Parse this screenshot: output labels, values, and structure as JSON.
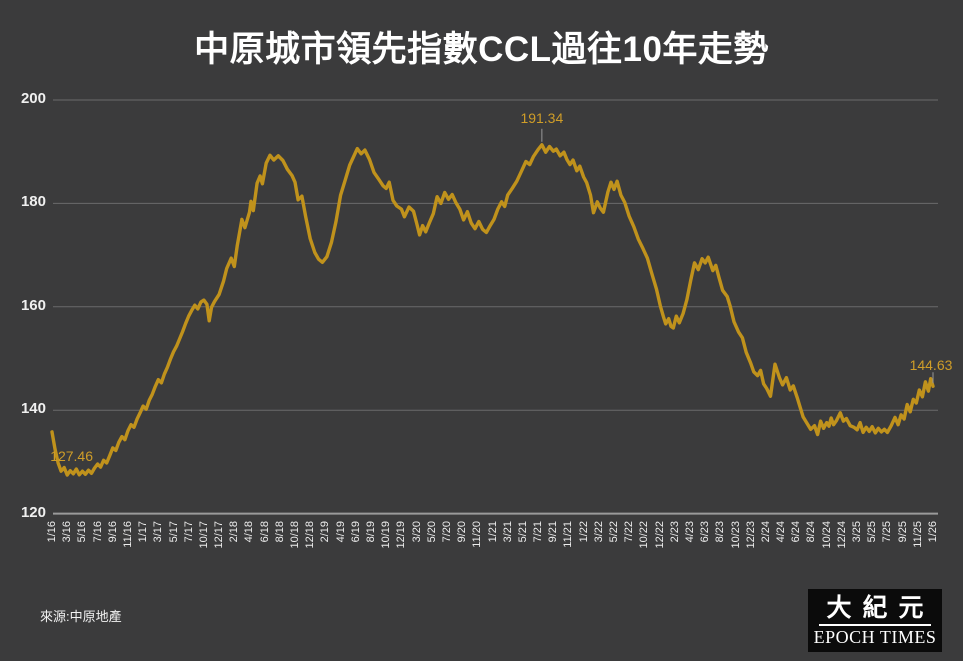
{
  "title": "中原城市領先指數CCL過往10年走勢",
  "source": "來源:中原地產",
  "logo": {
    "cjk": "大紀元",
    "latin": "EPOCH TIMES"
  },
  "colors": {
    "background": "#3b3b3c",
    "line_gold": "#c0921c",
    "annotation_gold": "#cf9d28",
    "gridline": "#6b6b6b",
    "axis_line": "#9a9a9a",
    "leader_gray": "#999999",
    "text_white": "#ffffff",
    "logo_background": "#0b0b0b"
  },
  "chart_data": {
    "type": "line",
    "title": "中原城市領先指數CCL過往10年走勢",
    "xlabel": "",
    "ylabel": "",
    "ylim": [
      120,
      200
    ],
    "grid": "horizontal",
    "legend": "none",
    "y_ticks": [
      200,
      180,
      160,
      140,
      120
    ],
    "x_tick_labels": [
      "1/16",
      "3/16",
      "5/16",
      "7/16",
      "9/16",
      "11/16",
      "1/17",
      "3/17",
      "5/17",
      "7/17",
      "10/17",
      "12/17",
      "2/18",
      "4/18",
      "6/18",
      "8/18",
      "10/18",
      "12/18",
      "2/19",
      "4/19",
      "6/19",
      "8/19",
      "10/19",
      "12/19",
      "3/20",
      "5/20",
      "7/20",
      "9/20",
      "11/20",
      "1/21",
      "3/21",
      "5/21",
      "7/21",
      "9/21",
      "11/21",
      "1/22",
      "3/22",
      "5/22",
      "7/22",
      "10/22",
      "12/22",
      "2/23",
      "4/23",
      "6/23",
      "8/23",
      "10/23",
      "12/23",
      "2/24",
      "4/24",
      "6/24",
      "8/24",
      "10/24",
      "12/24",
      "3/25",
      "5/25",
      "7/25",
      "9/25",
      "11/25",
      "1/26"
    ],
    "annotations": [
      {
        "text": "127.46",
        "t": 1.0,
        "v": 127.46,
        "pos": "start"
      },
      {
        "text": "191.34",
        "t": 32.25,
        "v": 191.34,
        "pos": "peak"
      },
      {
        "text": "144.63",
        "t": 58.0,
        "v": 144.63,
        "pos": "end"
      }
    ],
    "series": [
      {
        "name": "CCL",
        "points": {
          "t": [
            0,
            0.2,
            0.4,
            0.6,
            0.8,
            1.0,
            1.2,
            1.4,
            1.6,
            1.8,
            2.0,
            2.2,
            2.4,
            2.6,
            2.8,
            3.0,
            3.2,
            3.4,
            3.6,
            3.8,
            4.0,
            4.2,
            4.4,
            4.6,
            4.8,
            5.0,
            5.2,
            5.4,
            5.6,
            5.8,
            6.0,
            6.2,
            6.4,
            6.6,
            6.8,
            7.0,
            7.2,
            7.4,
            7.6,
            7.8,
            8.0,
            8.2,
            8.4,
            8.6,
            8.8,
            9.0,
            9.2,
            9.4,
            9.6,
            9.8,
            10.0,
            10.2,
            10.35,
            10.5,
            10.7,
            11.0,
            11.3,
            11.5,
            11.8,
            12.0,
            12.2,
            12.5,
            12.7,
            13.0,
            13.1,
            13.25,
            13.5,
            13.7,
            13.85,
            14.1,
            14.35,
            14.6,
            14.9,
            15.2,
            15.5,
            15.8,
            16.0,
            16.2,
            16.45,
            16.7,
            17.0,
            17.3,
            17.55,
            17.8,
            18.1,
            18.4,
            18.7,
            19.0,
            19.3,
            19.6,
            19.85,
            20.1,
            20.35,
            20.6,
            20.9,
            21.2,
            21.5,
            21.8,
            22.0,
            22.2,
            22.45,
            22.7,
            23.0,
            23.2,
            23.5,
            23.8,
            24.0,
            24.2,
            24.4,
            24.6,
            24.85,
            25.1,
            25.35,
            25.6,
            25.85,
            26.1,
            26.35,
            26.6,
            26.85,
            27.1,
            27.35,
            27.6,
            27.85,
            28.1,
            28.35,
            28.6,
            28.85,
            29.1,
            29.35,
            29.6,
            29.8,
            30.0,
            30.3,
            30.6,
            30.9,
            31.2,
            31.45,
            31.7,
            32.0,
            32.25,
            32.5,
            32.75,
            33.0,
            33.2,
            33.45,
            33.7,
            33.9,
            34.1,
            34.3,
            34.55,
            34.75,
            35.0,
            35.2,
            35.45,
            35.65,
            35.9,
            36.1,
            36.3,
            36.6,
            36.8,
            37.0,
            37.2,
            37.45,
            37.7,
            38.0,
            38.3,
            38.6,
            38.9,
            39.2,
            39.5,
            39.8,
            40.05,
            40.25,
            40.4,
            40.6,
            40.75,
            40.9,
            41.1,
            41.3,
            41.55,
            41.8,
            42.05,
            42.3,
            42.55,
            42.8,
            43.0,
            43.2,
            43.5,
            43.7,
            43.9,
            44.15,
            44.45,
            44.65,
            44.9,
            45.2,
            45.45,
            45.7,
            46.0,
            46.2,
            46.45,
            46.65,
            46.85,
            47.05,
            47.3,
            47.6,
            47.9,
            48.1,
            48.35,
            48.6,
            48.8,
            49.05,
            49.25,
            49.45,
            49.7,
            49.95,
            50.2,
            50.4,
            50.6,
            50.8,
            51.0,
            51.15,
            51.3,
            51.45,
            51.65,
            51.9,
            52.1,
            52.3,
            52.55,
            52.8,
            53.0,
            53.2,
            53.4,
            53.6,
            53.8,
            54.0,
            54.2,
            54.4,
            54.6,
            54.8,
            55.0,
            55.25,
            55.5,
            55.7,
            55.9,
            56.1,
            56.3,
            56.5,
            56.7,
            56.9,
            57.1,
            57.3,
            57.5,
            57.7,
            57.85,
            58.0
          ],
          "v": [
            135.8,
            132.5,
            129.8,
            128.2,
            128.9,
            127.46,
            128.3,
            127.7,
            128.6,
            127.5,
            128.2,
            127.6,
            128.4,
            127.8,
            128.8,
            129.6,
            129.0,
            130.3,
            129.8,
            131.2,
            132.7,
            132.2,
            133.8,
            134.9,
            134.3,
            136.0,
            137.2,
            136.7,
            138.3,
            139.5,
            140.8,
            140.2,
            141.9,
            143.1,
            144.6,
            145.9,
            145.3,
            147.0,
            148.3,
            149.9,
            151.3,
            152.4,
            153.8,
            155.2,
            156.8,
            158.2,
            159.3,
            160.3,
            159.6,
            160.9,
            161.3,
            160.5,
            157.3,
            159.9,
            161.0,
            162.4,
            165.0,
            167.4,
            169.4,
            167.8,
            171.9,
            176.9,
            175.3,
            178.3,
            180.4,
            178.6,
            183.9,
            185.3,
            183.8,
            187.8,
            189.3,
            188.4,
            189.2,
            188.3,
            186.6,
            185.4,
            184.1,
            180.7,
            181.4,
            177.4,
            173.2,
            170.5,
            169.2,
            168.6,
            169.7,
            172.5,
            176.5,
            181.6,
            184.5,
            187.4,
            189.0,
            190.6,
            189.6,
            190.3,
            188.5,
            186.0,
            184.7,
            183.4,
            182.9,
            184.1,
            180.6,
            179.5,
            178.9,
            177.4,
            179.3,
            178.5,
            176.2,
            173.9,
            175.7,
            174.5,
            176.3,
            178.0,
            181.3,
            180.0,
            182.1,
            180.8,
            181.7,
            180.1,
            178.9,
            176.8,
            178.4,
            176.2,
            175.1,
            176.5,
            175.0,
            174.4,
            175.7,
            176.9,
            178.9,
            180.3,
            179.4,
            181.6,
            182.9,
            184.3,
            186.2,
            188.1,
            187.5,
            189.1,
            190.4,
            191.34,
            189.9,
            191.0,
            190.1,
            190.5,
            189.2,
            189.9,
            188.5,
            187.5,
            188.4,
            186.3,
            187.2,
            185.1,
            184.0,
            181.6,
            178.2,
            180.3,
            179.1,
            178.3,
            182.2,
            184.1,
            182.7,
            184.3,
            181.6,
            180.2,
            177.5,
            175.5,
            173.1,
            171.3,
            169.4,
            166.3,
            163.4,
            160.2,
            158.1,
            156.7,
            157.7,
            156.2,
            155.9,
            158.2,
            156.9,
            158.7,
            161.4,
            165.1,
            168.5,
            167.2,
            169.3,
            168.5,
            169.6,
            167.0,
            168.0,
            165.8,
            163.2,
            162.0,
            160.1,
            157.1,
            155.1,
            154.0,
            151.2,
            149.1,
            147.4,
            146.7,
            147.7,
            145.1,
            144.2,
            142.7,
            148.9,
            146.2,
            144.9,
            146.3,
            143.9,
            144.7,
            142.5,
            140.6,
            138.7,
            137.5,
            136.3,
            137.0,
            135.3,
            137.9,
            136.5,
            137.6,
            136.9,
            138.5,
            137.2,
            138.0,
            139.5,
            137.9,
            138.4,
            137.0,
            136.7,
            136.2,
            137.6,
            135.7,
            136.7,
            135.9,
            136.8,
            135.6,
            136.5,
            135.8,
            136.3,
            135.7,
            137.0,
            138.6,
            137.2,
            139.1,
            138.3,
            141.1,
            139.7,
            142.1,
            141.4,
            143.9,
            142.6,
            145.5,
            143.7,
            146.1,
            144.63
          ]
        }
      }
    ]
  }
}
